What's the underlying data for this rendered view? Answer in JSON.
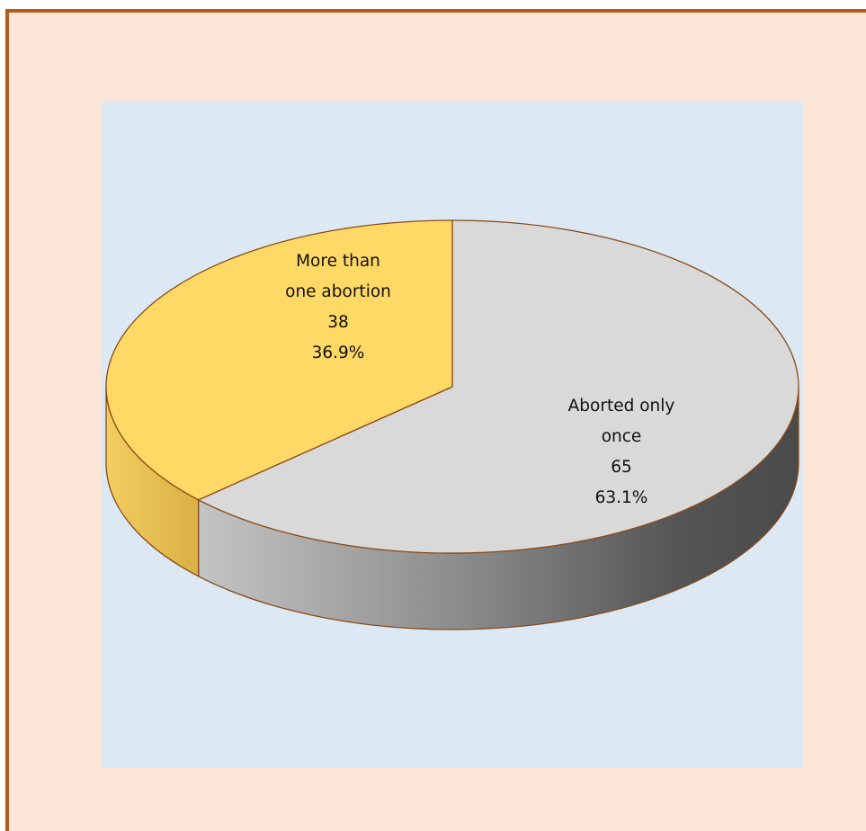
{
  "chart_data": {
    "type": "pie",
    "three_d": true,
    "title": "",
    "slices": [
      {
        "name_lines": [
          "Aborted only",
          "once"
        ],
        "count": 65,
        "percent_label": "63.1%",
        "value": 63.1,
        "color": "#d9d9d9",
        "side_color_light": "#bfbfbf",
        "side_color_dark": "#4a4a4a"
      },
      {
        "name_lines": [
          "More than",
          "one abortion"
        ],
        "count": 38,
        "percent_label": "36.9%",
        "value": 36.9,
        "color": "#ffd966",
        "side_color_light": "#efc85a",
        "side_color_dark": "#d9ad3c"
      }
    ],
    "legend": "none",
    "outline_color": "#8b4a17"
  },
  "colors": {
    "frame_border": "#b05e1e",
    "frame_background": "#fbe5d6",
    "plot_background": "#dce9f5"
  }
}
